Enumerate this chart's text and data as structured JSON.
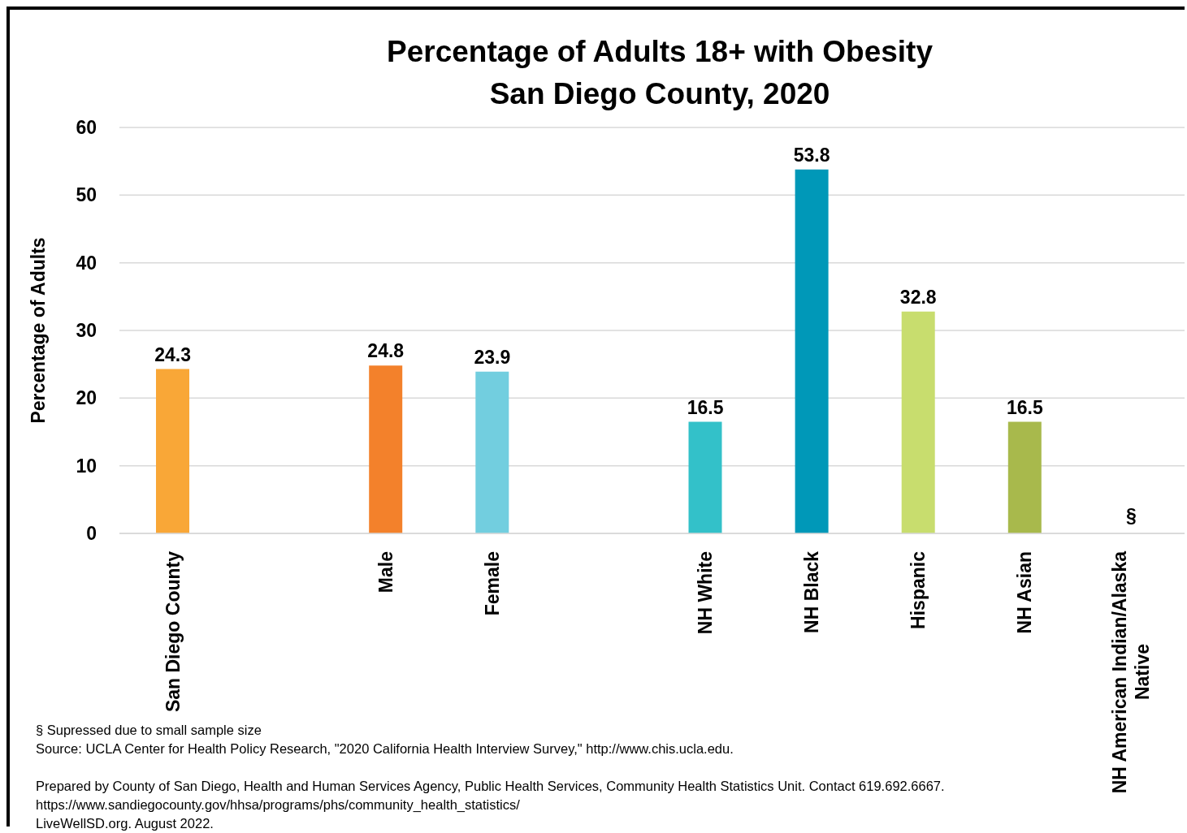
{
  "chart_data": {
    "type": "bar",
    "title": "Percentage of Adults 18+ with Obesity\nSan Diego County, 2020",
    "ylabel": "Percentage of Adults",
    "categories": [
      "San Diego County",
      null,
      "Male",
      "Female",
      null,
      "NH White",
      "NH Black",
      "Hispanic",
      "NH Asian",
      "NH American Indian/Alaska Native"
    ],
    "values": [
      24.3,
      null,
      24.8,
      23.9,
      null,
      16.5,
      53.8,
      32.8,
      16.5,
      null
    ],
    "value_labels": [
      "24.3",
      null,
      "24.8",
      "23.9",
      null,
      "16.5",
      "53.8",
      "32.8",
      "16.5",
      "§"
    ],
    "colors": [
      "#f9a737",
      null,
      "#f3812b",
      "#72cedf",
      null,
      "#33c1c9",
      "#0098b8",
      "#c8dd6e",
      "#a8b94c",
      null
    ],
    "ylim": [
      0,
      60
    ],
    "yticks": [
      0,
      10,
      20,
      30,
      40,
      50,
      60
    ],
    "grid": "y",
    "annotations": [
      "§ Supressed due to small sample size",
      "Source: UCLA Center for Health Policy Research, \"2020 California Health Interview Survey,\" http://www.chis.ucla.edu.",
      "Prepared by County of San Diego, Health and Human Services Agency, Public Health Services, Community Health Statistics Unit. Contact 619.692.6667.",
      "https://www.sandiegocounty.gov/hhsa/programs/phs/community_health_statistics/",
      "LiveWellSD.org. August 2022."
    ]
  }
}
